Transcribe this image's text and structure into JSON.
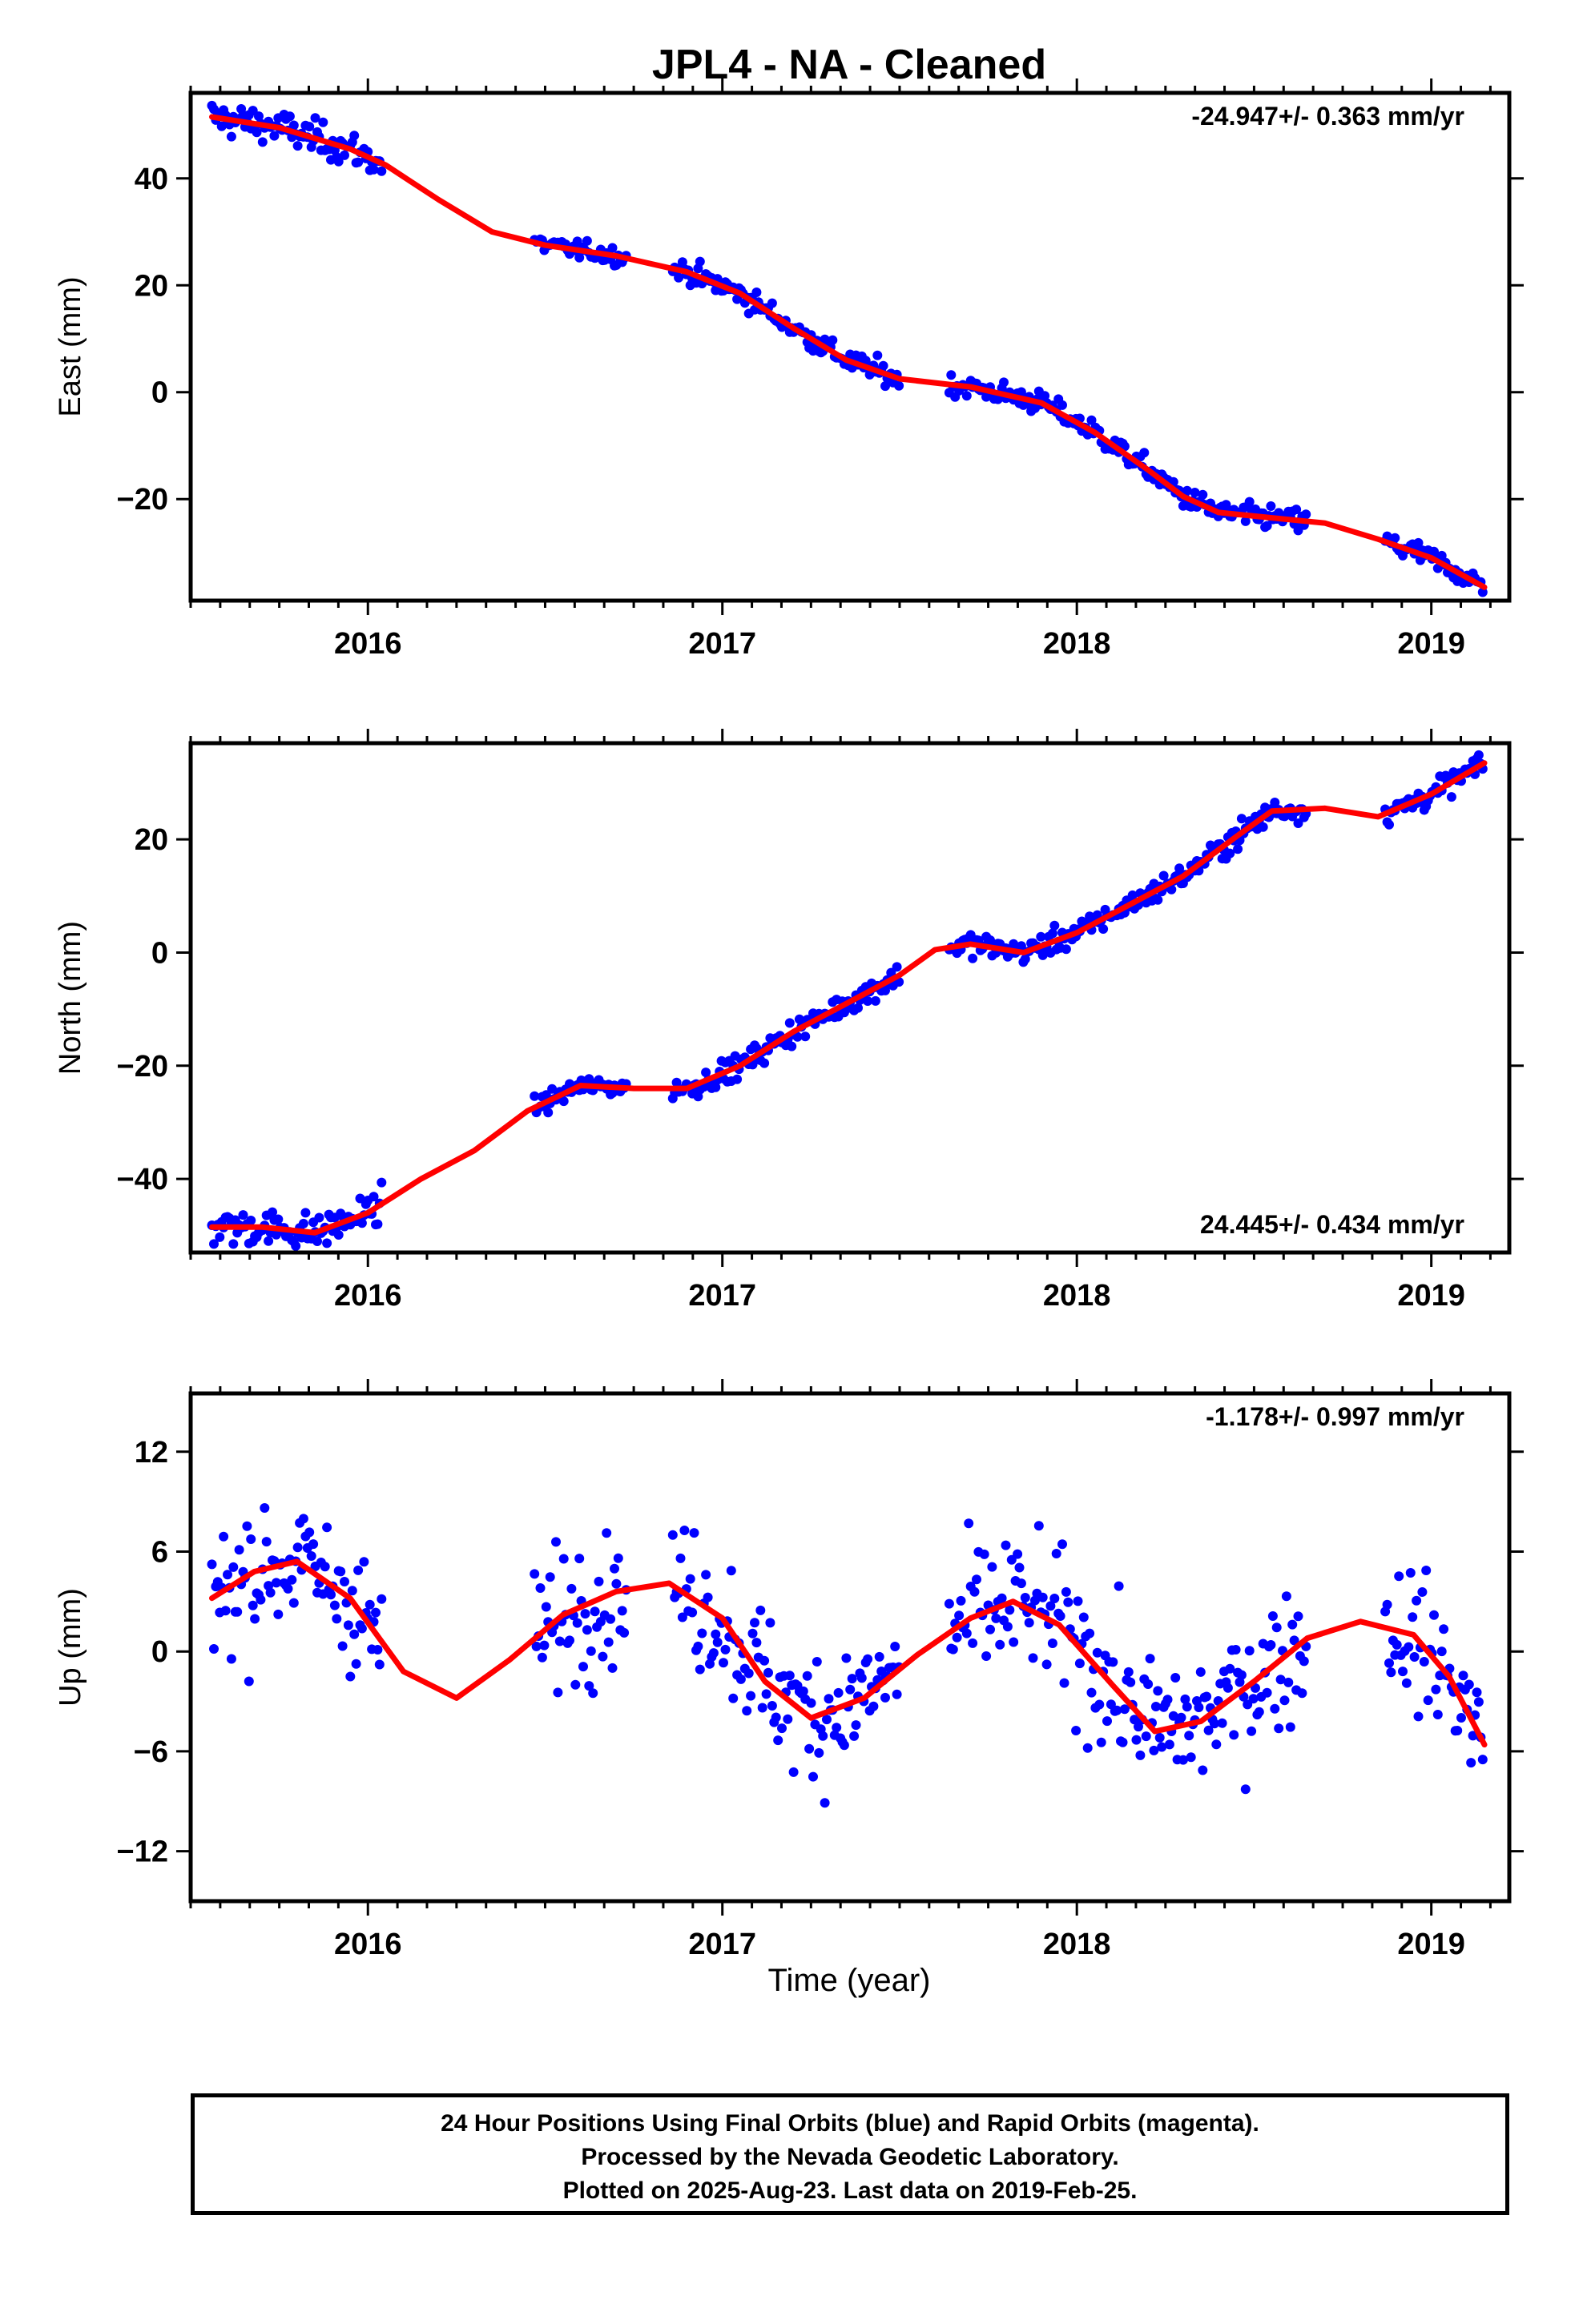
{
  "chart_data": {
    "title": "JPL4  - NA - Cleaned",
    "xlabel": "Time (year)",
    "x_tick_labels": [
      "2016",
      "2017",
      "2018",
      "2019"
    ],
    "xlim": [
      2015.5,
      2019.22
    ],
    "series_colors": {
      "observations": "#0000ff",
      "model": "#ff0000"
    },
    "panels": [
      {
        "type": "scatter",
        "ylabel": "East (mm)",
        "ylim": [
          -39,
          56
        ],
        "y_ticks": [
          40,
          20,
          0,
          -20
        ],
        "y_tick_labels": [
          "40",
          "20",
          "0",
          "−20"
        ],
        "rate": "-24.947+/- 0.363 mm/yr",
        "rate_position": "top-right",
        "trend_points": [
          [
            2015.56,
            51.5
          ],
          [
            2015.75,
            49.5
          ],
          [
            2015.95,
            45.5
          ],
          [
            2016.05,
            42.5
          ],
          [
            2016.2,
            36
          ],
          [
            2016.35,
            30
          ],
          [
            2016.5,
            27.5
          ],
          [
            2016.7,
            25.5
          ],
          [
            2016.9,
            22.5
          ],
          [
            2017.05,
            18.5
          ],
          [
            2017.2,
            12
          ],
          [
            2017.35,
            6
          ],
          [
            2017.5,
            2.5
          ],
          [
            2017.7,
            1
          ],
          [
            2017.9,
            -2
          ],
          [
            2018.05,
            -7.5
          ],
          [
            2018.2,
            -14.5
          ],
          [
            2018.3,
            -19.5
          ],
          [
            2018.4,
            -22.5
          ],
          [
            2018.55,
            -23.5
          ],
          [
            2018.7,
            -24.5
          ],
          [
            2018.85,
            -27.5
          ],
          [
            2019.0,
            -31
          ],
          [
            2019.15,
            -36.5
          ]
        ],
        "observation_segments": [
          [
            2015.56,
            2016.04,
            3.0
          ],
          [
            2016.47,
            2016.73,
            1.5
          ],
          [
            2016.86,
            2017.5,
            2.0
          ],
          [
            2017.64,
            2018.65,
            2.0
          ],
          [
            2018.87,
            2019.15,
            2.0
          ]
        ]
      },
      {
        "type": "scatter",
        "ylabel": "North (mm)",
        "ylim": [
          -53,
          37
        ],
        "y_ticks": [
          20,
          0,
          -20,
          -40
        ],
        "y_tick_labels": [
          "20",
          "0",
          "−20",
          "−40"
        ],
        "rate": "24.445+/- 0.434 mm/yr",
        "rate_position": "bottom-right",
        "trend_points": [
          [
            2015.56,
            -48.5
          ],
          [
            2015.7,
            -48.5
          ],
          [
            2015.85,
            -49.5
          ],
          [
            2016.0,
            -46
          ],
          [
            2016.15,
            -40
          ],
          [
            2016.3,
            -35
          ],
          [
            2016.45,
            -28
          ],
          [
            2016.6,
            -23.5
          ],
          [
            2016.75,
            -24
          ],
          [
            2016.9,
            -24
          ],
          [
            2017.05,
            -20
          ],
          [
            2017.2,
            -14
          ],
          [
            2017.35,
            -9
          ],
          [
            2017.5,
            -4
          ],
          [
            2017.6,
            0.5
          ],
          [
            2017.7,
            1.5
          ],
          [
            2017.85,
            0
          ],
          [
            2018.0,
            3.5
          ],
          [
            2018.15,
            8.5
          ],
          [
            2018.3,
            13.5
          ],
          [
            2018.45,
            20.5
          ],
          [
            2018.55,
            25
          ],
          [
            2018.7,
            25.5
          ],
          [
            2018.85,
            24
          ],
          [
            2019.0,
            28
          ],
          [
            2019.15,
            33.5
          ]
        ],
        "observation_segments": [
          [
            2015.56,
            2016.04,
            3.0
          ],
          [
            2016.47,
            2016.73,
            1.5
          ],
          [
            2016.86,
            2017.5,
            2.0
          ],
          [
            2017.64,
            2018.65,
            2.0
          ],
          [
            2018.87,
            2019.15,
            2.0
          ]
        ]
      },
      {
        "type": "scatter",
        "ylabel": "Up (mm)",
        "xlabel": "Time (year)",
        "ylim": [
          -15,
          15.5
        ],
        "y_ticks": [
          12,
          6,
          0,
          -6,
          -12
        ],
        "y_tick_labels": [
          "12",
          "6",
          "0",
          "−6",
          "−12"
        ],
        "rate": "-1.178+/- 0.997 mm/yr",
        "rate_position": "top-right",
        "trend_points": [
          [
            2015.56,
            3.2
          ],
          [
            2015.68,
            4.8
          ],
          [
            2015.8,
            5.4
          ],
          [
            2015.95,
            3.2
          ],
          [
            2016.1,
            -1.2
          ],
          [
            2016.25,
            -2.8
          ],
          [
            2016.4,
            -0.5
          ],
          [
            2016.55,
            2.2
          ],
          [
            2016.7,
            3.6
          ],
          [
            2016.85,
            4.1
          ],
          [
            2017.0,
            2.0
          ],
          [
            2017.12,
            -1.8
          ],
          [
            2017.25,
            -4.0
          ],
          [
            2017.4,
            -2.8
          ],
          [
            2017.55,
            -0.2
          ],
          [
            2017.7,
            2.0
          ],
          [
            2017.82,
            3.0
          ],
          [
            2017.95,
            1.6
          ],
          [
            2018.1,
            -2.0
          ],
          [
            2018.22,
            -4.8
          ],
          [
            2018.35,
            -4.2
          ],
          [
            2018.5,
            -1.8
          ],
          [
            2018.65,
            0.8
          ],
          [
            2018.8,
            1.8
          ],
          [
            2018.95,
            1.0
          ],
          [
            2019.05,
            -1.5
          ],
          [
            2019.15,
            -5.6
          ]
        ],
        "observation_segments": [
          [
            2015.56,
            2016.04,
            3.8
          ],
          [
            2016.47,
            2016.73,
            3.8
          ],
          [
            2016.86,
            2017.5,
            3.8
          ],
          [
            2017.64,
            2018.65,
            3.8
          ],
          [
            2018.87,
            2019.15,
            3.8
          ]
        ]
      }
    ]
  },
  "footer": {
    "line1": "24 Hour Positions Using Final Orbits (blue) and Rapid Orbits (magenta).",
    "line2": "Processed by the Nevada Geodetic Laboratory.",
    "line3": "Plotted on 2025-Aug-23. Last data on 2019-Feb-25."
  }
}
